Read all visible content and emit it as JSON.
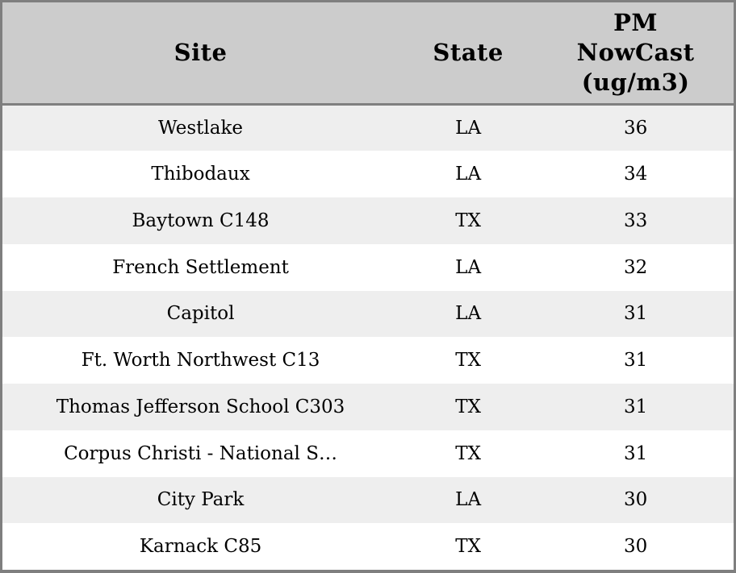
{
  "chart_data": {
    "type": "table",
    "columns": [
      {
        "key": "site",
        "label": "Site"
      },
      {
        "key": "state",
        "label": "State"
      },
      {
        "key": "pm_nowcast",
        "label": "PM\nNowCast\n(ug/m3)"
      }
    ],
    "rows": [
      {
        "site": "Westlake",
        "state": "LA",
        "pm_nowcast": 36
      },
      {
        "site": "Thibodaux",
        "state": "LA",
        "pm_nowcast": 34
      },
      {
        "site": "Baytown C148",
        "state": "TX",
        "pm_nowcast": 33
      },
      {
        "site": "French Settlement",
        "state": "LA",
        "pm_nowcast": 32
      },
      {
        "site": "Capitol",
        "state": "LA",
        "pm_nowcast": 31
      },
      {
        "site": "Ft. Worth Northwest C13",
        "state": "TX",
        "pm_nowcast": 31
      },
      {
        "site": "Thomas Jefferson School C303",
        "state": "TX",
        "pm_nowcast": 31
      },
      {
        "site": "Corpus Christi - National S…",
        "state": "TX",
        "pm_nowcast": 31
      },
      {
        "site": "City Park",
        "state": "LA",
        "pm_nowcast": 30
      },
      {
        "site": "Karnack C85",
        "state": "TX",
        "pm_nowcast": 30
      }
    ]
  },
  "colors": {
    "header_bg": "#cccccc",
    "border": "#7f7f7f",
    "row_alt_bg": "#eeeeee",
    "row_bg": "#ffffff",
    "text": "#000000"
  }
}
